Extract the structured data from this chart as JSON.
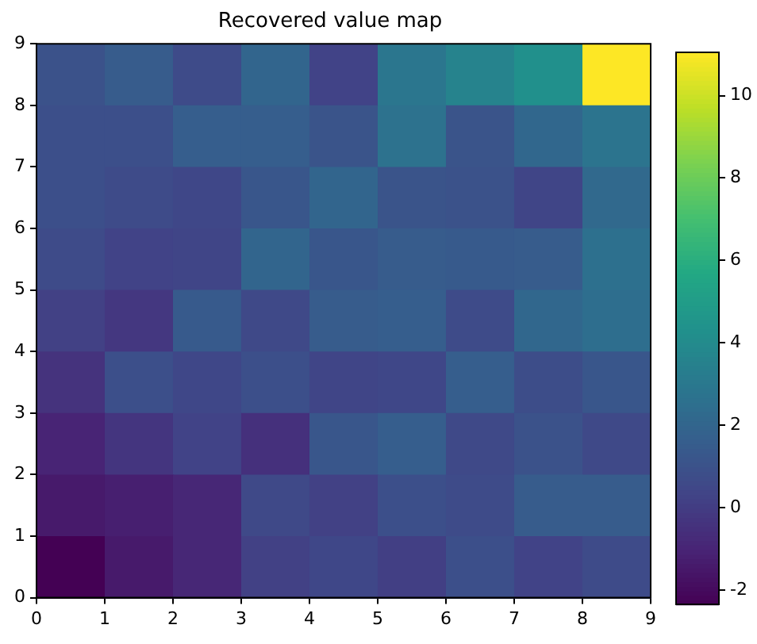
{
  "chart_data": {
    "type": "heatmap",
    "title": "Recovered value map",
    "xlim": [
      0,
      9
    ],
    "xticks": [
      0,
      1,
      2,
      3,
      4,
      5,
      6,
      7,
      8,
      9
    ],
    "ylim": [
      0,
      9
    ],
    "yticks": [
      0,
      1,
      2,
      3,
      4,
      5,
      6,
      7,
      8,
      9
    ],
    "clim": [
      -2.35,
      11.05
    ],
    "cticks": [
      -2,
      0,
      2,
      4,
      6,
      8,
      10
    ],
    "cells": [
      [
        1.0,
        1.5,
        0.7,
        2.0,
        0.3,
        2.9,
        3.6,
        4.3,
        11.05
      ],
      [
        0.9,
        0.9,
        1.6,
        1.6,
        1.1,
        2.7,
        1.1,
        2.1,
        2.8
      ],
      [
        0.9,
        0.7,
        0.5,
        1.2,
        2.0,
        1.1,
        1.0,
        0.4,
        2.2
      ],
      [
        0.7,
        0.3,
        0.4,
        2.0,
        1.2,
        1.5,
        1.4,
        1.5,
        2.6
      ],
      [
        0.2,
        -0.2,
        1.4,
        0.6,
        1.5,
        1.6,
        0.7,
        2.1,
        2.5
      ],
      [
        -0.4,
        0.9,
        0.5,
        0.9,
        0.4,
        0.5,
        1.6,
        0.8,
        1.2
      ],
      [
        -1.0,
        -0.3,
        0.3,
        -0.5,
        1.2,
        1.6,
        0.6,
        1.0,
        0.6
      ],
      [
        -1.4,
        -1.2,
        -0.9,
        0.6,
        0.2,
        0.9,
        0.7,
        1.5,
        1.5
      ],
      [
        -2.35,
        -1.4,
        -0.9,
        0.2,
        0.5,
        0.1,
        0.9,
        0.3,
        0.7
      ]
    ]
  }
}
